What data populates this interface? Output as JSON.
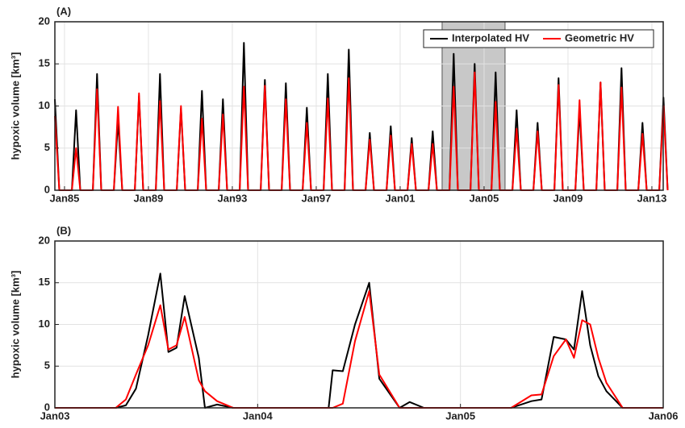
{
  "chart_data": [
    {
      "type": "line",
      "panel_label": "(A)",
      "ylabel": "hypoxic volume [km³]",
      "x": [
        1984.54,
        1984.75,
        1985.35,
        1985.55,
        1985.75,
        1986.35,
        1986.55,
        1986.75,
        1987.35,
        1987.55,
        1987.75,
        1988.35,
        1988.55,
        1988.75,
        1989.35,
        1989.55,
        1989.75,
        1990.35,
        1990.55,
        1990.75,
        1991.35,
        1991.55,
        1991.75,
        1992.35,
        1992.55,
        1992.75,
        1993.35,
        1993.55,
        1993.75,
        1994.35,
        1994.55,
        1994.75,
        1995.35,
        1995.55,
        1995.75,
        1996.35,
        1996.55,
        1996.75,
        1997.35,
        1997.55,
        1997.75,
        1998.35,
        1998.55,
        1998.75,
        1999.35,
        1999.55,
        1999.75,
        2000.35,
        2000.55,
        2000.75,
        2001.35,
        2001.55,
        2001.75,
        2002.35,
        2002.55,
        2002.75,
        2003.35,
        2003.55,
        2003.75,
        2004.35,
        2004.55,
        2004.75,
        2005.35,
        2005.55,
        2005.75,
        2006.35,
        2006.55,
        2006.75,
        2007.35,
        2007.55,
        2007.75,
        2008.35,
        2008.55,
        2008.75,
        2009.35,
        2009.55,
        2009.75,
        2010.35,
        2010.55,
        2010.75,
        2011.35,
        2011.55,
        2011.75,
        2012.35,
        2012.55,
        2012.75,
        2013.35,
        2013.55,
        2013.75
      ],
      "xlim": [
        1984.54,
        2013.54
      ],
      "xticks": [
        {
          "value": 1985,
          "label": "Jan85"
        },
        {
          "value": 1989,
          "label": "Jan89"
        },
        {
          "value": 1993,
          "label": "Jan93"
        },
        {
          "value": 1997,
          "label": "Jan97"
        },
        {
          "value": 2001,
          "label": "Jan01"
        },
        {
          "value": 2005,
          "label": "Jan05"
        },
        {
          "value": 2009,
          "label": "Jan09"
        },
        {
          "value": 2013,
          "label": "Jan13"
        }
      ],
      "ylim": [
        0,
        20
      ],
      "yticks": [
        0,
        5,
        10,
        15,
        20
      ],
      "grid": true,
      "highlight": [
        2003,
        2006
      ],
      "legend": "top-right",
      "series": [
        {
          "name": "Interpolated HV",
          "color": "#000000",
          "values": [
            10.8,
            0,
            0,
            9.5,
            0,
            0,
            13.8,
            0,
            0,
            8.3,
            0,
            0,
            11.2,
            0,
            0,
            13.8,
            0,
            0,
            9.7,
            0,
            0,
            11.8,
            0,
            0,
            10.8,
            0,
            0,
            17.5,
            0,
            0,
            13.1,
            0,
            0,
            12.7,
            0,
            0,
            9.8,
            0,
            0,
            13.8,
            0,
            0,
            16.7,
            0,
            0,
            6.8,
            0,
            0,
            7.6,
            0,
            0,
            6.2,
            0,
            0,
            7.0,
            0,
            0,
            16.2,
            0,
            0,
            15.0,
            0,
            0,
            14.0,
            0,
            0,
            9.5,
            0,
            0,
            8.0,
            0,
            0,
            13.3,
            0,
            0,
            9.5,
            0,
            0,
            12.8,
            0,
            0,
            14.5,
            0,
            0,
            8.0,
            0,
            0,
            11.0,
            0
          ]
        },
        {
          "name": "Geometric HV",
          "color": "#ff0000",
          "values": [
            8.8,
            0,
            0,
            5.0,
            0,
            0,
            12.0,
            0,
            0,
            9.9,
            0,
            0,
            11.5,
            0,
            0,
            10.6,
            0,
            0,
            10.0,
            0,
            0,
            8.5,
            0,
            0,
            9.0,
            0,
            0,
            12.3,
            0,
            0,
            12.4,
            0,
            0,
            10.8,
            0,
            0,
            8.0,
            0,
            0,
            10.9,
            0,
            0,
            13.3,
            0,
            0,
            6.0,
            0,
            0,
            6.5,
            0,
            0,
            5.5,
            0,
            0,
            5.5,
            0,
            0,
            12.3,
            0,
            0,
            14.0,
            0,
            0,
            10.5,
            0,
            0,
            7.3,
            0,
            0,
            7.0,
            0,
            0,
            12.5,
            0,
            0,
            10.7,
            0,
            0,
            12.8,
            0,
            0,
            12.2,
            0,
            0,
            6.7,
            0,
            0,
            10.0,
            0
          ]
        }
      ]
    },
    {
      "type": "line",
      "panel_label": "(B)",
      "ylabel": "hypoxic volume [km³]",
      "x": [
        2003.0,
        2003.3,
        2003.35,
        2003.4,
        2003.46,
        2003.52,
        2003.56,
        2003.6,
        2003.64,
        2003.71,
        2003.74,
        2003.8,
        2003.88,
        2004.0,
        2004.35,
        2004.37,
        2004.42,
        2004.48,
        2004.55,
        2004.6,
        2004.7,
        2004.75,
        2004.82,
        2004.88,
        2005.0,
        2005.25,
        2005.35,
        2005.4,
        2005.46,
        2005.52,
        2005.56,
        2005.6,
        2005.64,
        2005.68,
        2005.72,
        2005.8,
        2005.88,
        2006.0
      ],
      "xlim": [
        2003,
        2006
      ],
      "xticks": [
        {
          "value": 2003,
          "label": "Jan03"
        },
        {
          "value": 2004,
          "label": "Jan04"
        },
        {
          "value": 2005,
          "label": "Jan05"
        },
        {
          "value": 2006,
          "label": "Jan06"
        }
      ],
      "ylim": [
        0,
        20
      ],
      "yticks": [
        0,
        5,
        10,
        15,
        20
      ],
      "grid": true,
      "series": [
        {
          "color": "#000000",
          "values": [
            0,
            0,
            0.3,
            2.3,
            8.7,
            16.1,
            6.7,
            7.2,
            13.4,
            6.0,
            0,
            0.4,
            0,
            0,
            0,
            4.5,
            4.4,
            10.0,
            15.0,
            3.5,
            0,
            0.7,
            0,
            0,
            0,
            0,
            0.8,
            1.0,
            8.5,
            8.2,
            7.0,
            14.0,
            7.5,
            3.8,
            2.0,
            0,
            0,
            0
          ]
        },
        {
          "color": "#ff0000",
          "values": [
            0,
            0,
            1.0,
            4.0,
            7.5,
            12.3,
            7.0,
            7.5,
            10.9,
            3.3,
            2.0,
            0.8,
            0,
            0,
            0,
            0,
            0.5,
            8.0,
            14.0,
            4.0,
            0,
            0,
            0,
            0,
            0,
            0,
            1.5,
            1.6,
            6.2,
            8.2,
            6.0,
            10.5,
            10.0,
            6.0,
            3.0,
            0,
            0,
            0
          ]
        }
      ]
    }
  ]
}
